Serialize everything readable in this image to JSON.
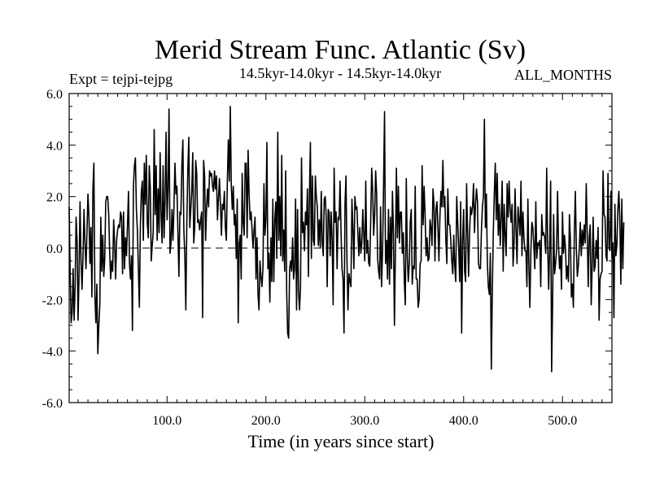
{
  "chart_data": {
    "type": "line",
    "title": "Merid Stream Func. Atlantic (Sv)",
    "subtitle_left": "Expt = tejpi-tejpg",
    "subtitle_center": "14.5kyr-14.0kyr - 14.5kyr-14.0kyr",
    "subtitle_right": "ALL_MONTHS",
    "xlabel": "Time (in years since start)",
    "ylabel": "",
    "xlim": [
      1,
      550
    ],
    "ylim": [
      -6.0,
      6.0
    ],
    "x_ticks": [
      100,
      200,
      300,
      400,
      500
    ],
    "x_tick_labels": [
      "100.0",
      "200.0",
      "300.0",
      "400.0",
      "500.0"
    ],
    "y_ticks": [
      -6,
      -4,
      -2,
      0,
      2,
      4,
      6
    ],
    "y_tick_labels": [
      "-6.0",
      "-4.0",
      "-2.0",
      "0.0",
      "2.0",
      "4.0",
      "6.0"
    ],
    "zero_line": true,
    "grid": false,
    "series": [
      {
        "name": "Merid Stream Func. Atlantic",
        "color": "#000000",
        "x_start": 1,
        "x_step": 1,
        "values": [
          1.6,
          -1.0,
          -2.9,
          -2.5,
          -0.8,
          -2.8,
          -1.5,
          1.2,
          0.3,
          -2.8,
          -1.0,
          1.8,
          -0.5,
          -1.6,
          -0.3,
          1.5,
          0.2,
          -0.8,
          0.6,
          2.1,
          1.2,
          -0.6,
          0.8,
          -1.9,
          2.3,
          3.3,
          -1.8,
          -2.9,
          -1.4,
          -4.1,
          -3.0,
          -2.2,
          1.2,
          -0.9,
          0.5,
          -1.1,
          -0.4,
          1.8,
          2.0,
          2.0,
          1.3,
          -0.2,
          -1.2,
          -0.5,
          -0.9,
          1.1,
          0.2,
          -1.2,
          0.3,
          0.7,
          0.9,
          0.8,
          1.4,
          1.2,
          -1.0,
          1.4,
          -0.8,
          0.4,
          -0.3,
          0.9,
          2.2,
          -0.6,
          -1.2,
          -0.3,
          -3.2,
          2.4,
          3.2,
          3.5,
          1.5,
          0.7,
          -0.8,
          -2.3,
          0.8,
          2.2,
          2.6,
          0.3,
          3.3,
          1.7,
          3.6,
          1.0,
          0.4,
          3.2,
          2.4,
          -0.5,
          0.1,
          0.6,
          4.6,
          1.3,
          3.2,
          0.3,
          2.3,
          0.6,
          3.7,
          1.3,
          0.2,
          3.2,
          0.4,
          1.9,
          4.5,
          1.1,
          2.3,
          5.4,
          -0.2,
          0.2,
          1.5,
          0.3,
          1.6,
          3.3,
          2.1,
          2.4,
          0.6,
          -1.1,
          1.4,
          1.3,
          3.2,
          4.2,
          0.7,
          -0.3,
          -2.4,
          1.0,
          3.0,
          4.3,
          0.8,
          1.5,
          2.2,
          3.7,
          0.2,
          0.8,
          3.4,
          2.9,
          1.0,
          1.1,
          0.7,
          1.1,
          1.4,
          -2.7,
          3.4,
          2.8,
          0.3,
          1.6,
          2.3,
          1.6,
          3.0,
          2.8,
          2.9,
          2.4,
          2.2,
          3.0,
          2.3,
          2.8,
          1.1,
          1.9,
          2.7,
          1.7,
          0.5,
          1.7,
          1.5,
          2.2,
          0.8,
          0.3,
          2.6,
          4.2,
          2.6,
          5.5,
          2.4,
          1.5,
          2.4,
          0.9,
          1.3,
          -0.4,
          1.9,
          -2.9,
          0.2,
          0.5,
          -1.2,
          2.9,
          1.0,
          0.5,
          3.3,
          3.3,
          0.4,
          3.8,
          2.1,
          1.1,
          1.4,
          0.7,
          0.0,
          0.7,
          1.2,
          -1.2,
          0.4,
          -1.8,
          -2.4,
          -0.5,
          -1.1,
          -1.5,
          -0.8,
          2.5,
          0.5,
          1.1,
          4.1,
          -0.8,
          -0.2,
          -2.1,
          0.4,
          -1.3,
          1.9,
          -1.3,
          1.1,
          1.8,
          -0.4,
          4.5,
          0.3,
          2.0,
          -0.3,
          3.6,
          -0.5,
          0.7,
          -0.9,
          3.0,
          -1.7,
          -3.3,
          -3.5,
          -0.8,
          -0.5,
          -0.9,
          0.4,
          -1.2,
          -0.8,
          1.9,
          -2.4,
          1.5,
          -1.7,
          -2.4,
          -1.5,
          3.5,
          0.6,
          1.0,
          -0.1,
          1.4,
          0.9,
          2.3,
          -1.1,
          2.0,
          4.1,
          -0.4,
          2.8,
          0.3,
          0.1,
          2.8,
          2.0,
          1.6,
          0.1,
          1.1,
          0.0,
          2.2,
          0.2,
          -0.3,
          1.9,
          2.0,
          1.2,
          -1.5,
          1.5,
          1.4,
          -0.3,
          1.4,
          0.3,
          -2.2,
          3.1,
          1.0,
          1.4,
          -0.8,
          1.2,
          1.1,
          2.6,
          0.6,
          -0.8,
          -1.2,
          -3.3,
          1.7,
          2.8,
          -0.5,
          -2.4,
          -1.0,
          -1.3,
          -1.5,
          1.9,
          0.8,
          -0.8,
          2.0,
          1.5,
          1.6,
          0.6,
          -0.3,
          0.8,
          -0.2,
          0.2,
          1.5,
          0.5,
          -0.5,
          2.6,
          -0.2,
          0.3,
          -0.6,
          -0.7,
          1.1,
          3.1,
          2.2,
          0.5,
          1.3,
          3.0,
          2.1,
          -0.4,
          -0.9,
          -1.2,
          1.6,
          -1.5,
          -0.1,
          2.4,
          5.3,
          -0.6,
          0.3,
          -1.2,
          1.5,
          -1.4,
          1.2,
          -0.8,
          2.2,
          0.6,
          -3.0,
          0.0,
          3.1,
          0.4,
          2.4,
          0.2,
          1.4,
          1.4,
          -0.2,
          0.6,
          -1.3,
          -2.2,
          2.7,
          -0.3,
          -1.3,
          -0.6,
          1.0,
          1.5,
          -1.4,
          -0.7,
          -0.8,
          2.4,
          -1.2,
          -1.2,
          -2.3,
          -2.0,
          -0.6,
          -0.5,
          3.2,
          0.9,
          2.4,
          1.3,
          -0.3,
          0.4,
          -0.5,
          -0.4,
          1.1,
          0.8,
          0.1,
          2.3,
          1.7,
          -0.5,
          1.5,
          1.8,
          0.8,
          -0.5,
          1.2,
          2.2,
          1.6,
          3.4,
          1.6,
          2.0,
          0.3,
          -0.6,
          2.3,
          0.9,
          0.9,
          0.3,
          -0.5,
          -1.0,
          0.5,
          -0.7,
          -1.3,
          2.0,
          1.0,
          0.0,
          -1.3,
          1.8,
          -3.3,
          0.3,
          1.5,
          -0.9,
          -1.3,
          2.5,
          0.6,
          -1.1,
          0.6,
          1.6,
          1.3,
          1.6,
          2.5,
          0.6,
          1.7,
          2.3,
          1.8,
          -0.6,
          -0.8,
          -0.8,
          0.7,
          1.6,
          2.0,
          5.0,
          0.8,
          2.1,
          -0.6,
          -1.5,
          -1.8,
          -0.2,
          -4.7,
          -1.7,
          0.6,
          2.1,
          3.3,
          1.1,
          2.9,
          0.5,
          1.7,
          0.1,
          1.2,
          2.6,
          -0.9,
          1.7,
          0.5,
          -0.3,
          2.5,
          1.2,
          2.6,
          1.5,
          1.0,
          1.7,
          -0.7,
          0.2,
          2.3,
          0.7,
          -0.6,
          1.6,
          1.1,
          0.5,
          2.6,
          -0.3,
          1.4,
          0.4,
          -0.1,
          -0.1,
          -1.5,
          1.9,
          -0.7,
          -2.3,
          -0.1,
          1.0,
          0.8,
          0.1,
          -0.8,
          1.8,
          -0.4,
          0.2,
          0.1,
          0.3,
          -1.5,
          1.3,
          0.5,
          0.6,
          0.4,
          -0.2,
          3.1,
          0.1,
          -1.6,
          0.0,
          2.6,
          -4.8,
          -2.1,
          1.3,
          -1.0,
          -0.6,
          -0.1,
          2.2,
          0.1,
          -0.8,
          -0.3,
          -1.6,
          1.4,
          -0.2,
          0.5,
          0.0,
          -1.2,
          -0.7,
          -1.3,
          1.3,
          0.3,
          -1.9,
          -1.4,
          -2.3,
          0.7,
          2.2,
          0.0,
          -1.1,
          -0.7,
          0.0,
          1.0,
          -0.3,
          0.7,
          0.1,
          0.9,
          0.2,
          2.5,
          0.6,
          -1.5,
          0.4,
          0.9,
          -2.2,
          -0.7,
          1.2,
          -0.9,
          -0.7,
          0.3,
          -0.4,
          0.8,
          -2.8,
          -1.2,
          -1.0,
          -0.9,
          3.0,
          1.3,
          1.2,
          -0.3,
          -0.5,
          2.9,
          0.0,
          -0.1,
          2.2,
          -0.4,
          0.2,
          -2.7,
          1.7,
          -0.3,
          0.1,
          1.5,
          2.2,
          1.1,
          -1.4,
          1.9,
          -0.8,
          1.0
        ]
      }
    ]
  }
}
